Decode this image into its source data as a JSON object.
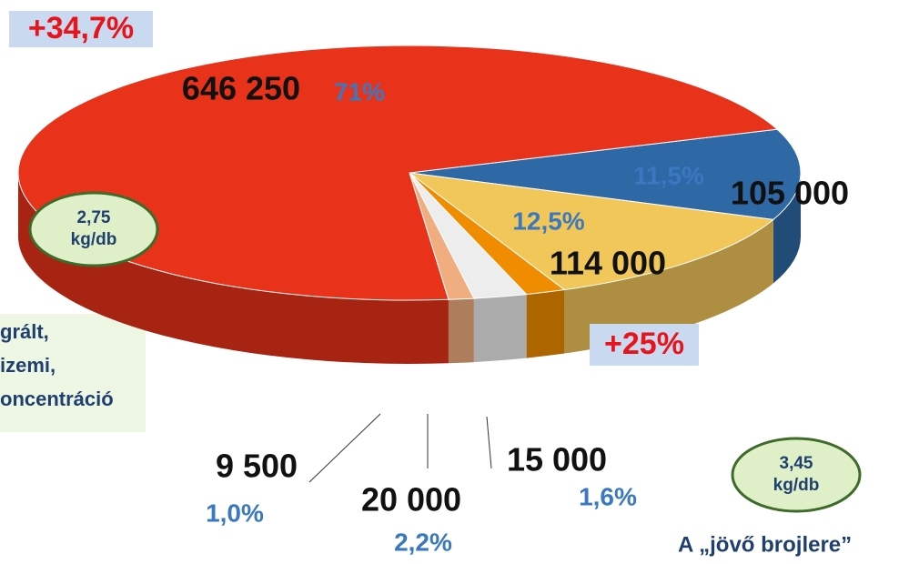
{
  "chart_data": {
    "type": "pie",
    "categories": [
      "646 250",
      "105 000",
      "114 000",
      "15 000",
      "20 000",
      "9 500"
    ],
    "values": [
      646250,
      105000,
      114000,
      15000,
      20000,
      9500
    ],
    "value_labels": [
      "646 250",
      "105 000",
      "114 000",
      "15 000",
      "20 000",
      "9 500"
    ],
    "percent_labels": [
      "71%",
      "11,5%",
      "12,5%",
      "1,6%",
      "2,2%",
      "1,0%"
    ],
    "colors": [
      "#e8321a",
      "#2e69a6",
      "#f1c75a",
      "#f08c00",
      "#ededed",
      "#f0ad80"
    ],
    "annotations": {
      "growth_top": "+34,7%",
      "growth_mid": "+25%",
      "badge_left": [
        "2,75",
        "kg/db"
      ],
      "badge_right": [
        "3,45",
        "kg/db"
      ],
      "side_text": [
        "grált,",
        "izemi,",
        "oncentráció"
      ],
      "caption": "A „jövő brojlere”"
    }
  }
}
